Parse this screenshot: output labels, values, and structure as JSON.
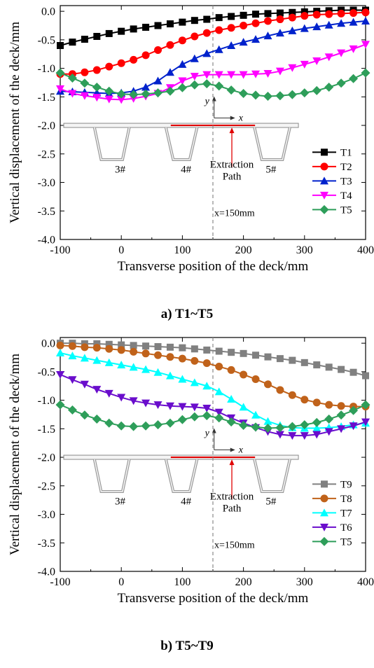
{
  "captions": {
    "a": "a)    T1~T5",
    "b": "b)    T5~T9"
  },
  "chart_data": [
    {
      "type": "line",
      "xlabel": "Transverse position of the deck/mm",
      "ylabel": "Vertical displacement of the deck/mm",
      "xlim": [
        -100,
        400
      ],
      "ylim": [
        -4.0,
        0.1
      ],
      "xticks": [
        -100,
        0,
        100,
        200,
        300,
        400
      ],
      "xtick_labels": [
        "-100",
        "0",
        "100",
        "200",
        "300",
        "400"
      ],
      "yticks": [
        0.0,
        -0.5,
        -1.0,
        -1.5,
        -2.0,
        -2.5,
        -3.0,
        -3.5,
        -4.0
      ],
      "ytick_labels": [
        "0.0",
        "-0.5",
        "-1.0",
        "-1.5",
        "-2.0",
        "-2.5",
        "-3.0",
        "-3.5",
        "-4.0"
      ],
      "x": [
        -100,
        -80,
        -60,
        -40,
        -20,
        0,
        20,
        40,
        60,
        80,
        100,
        120,
        140,
        160,
        180,
        200,
        220,
        240,
        260,
        280,
        300,
        320,
        340,
        360,
        380,
        400
      ],
      "annotations": {
        "vline_label": "x=150mm",
        "rib_labels": [
          "3#",
          "4#",
          "5#"
        ],
        "path_label": [
          "Extraction",
          "Path"
        ],
        "x_axis": "x",
        "y_axis": "y"
      },
      "series": [
        {
          "name": "T1",
          "color": "#000000",
          "marker": "square",
          "values": [
            -0.6,
            -0.54,
            -0.49,
            -0.44,
            -0.39,
            -0.35,
            -0.31,
            -0.28,
            -0.25,
            -0.22,
            -0.19,
            -0.16,
            -0.14,
            -0.11,
            -0.09,
            -0.07,
            -0.05,
            -0.04,
            -0.03,
            -0.02,
            -0.01,
            0.0,
            0.01,
            0.02,
            0.02,
            0.02
          ]
        },
        {
          "name": "T2",
          "color": "#ff0000",
          "marker": "circle",
          "values": [
            -1.1,
            -1.1,
            -1.07,
            -1.03,
            -0.97,
            -0.91,
            -0.85,
            -0.77,
            -0.68,
            -0.59,
            -0.51,
            -0.44,
            -0.38,
            -0.33,
            -0.29,
            -0.25,
            -0.21,
            -0.17,
            -0.14,
            -0.11,
            -0.08,
            -0.06,
            -0.05,
            -0.04,
            -0.03,
            -0.02
          ]
        },
        {
          "name": "T3",
          "color": "#0022cc",
          "marker": "triangle-up",
          "values": [
            -1.4,
            -1.41,
            -1.42,
            -1.43,
            -1.44,
            -1.43,
            -1.4,
            -1.33,
            -1.22,
            -1.07,
            -0.93,
            -0.83,
            -0.74,
            -0.67,
            -0.6,
            -0.54,
            -0.49,
            -0.43,
            -0.38,
            -0.34,
            -0.3,
            -0.27,
            -0.24,
            -0.21,
            -0.19,
            -0.17
          ]
        },
        {
          "name": "T4",
          "color": "#ff00ff",
          "marker": "triangle-down",
          "values": [
            -1.36,
            -1.44,
            -1.48,
            -1.51,
            -1.54,
            -1.55,
            -1.53,
            -1.49,
            -1.44,
            -1.34,
            -1.22,
            -1.14,
            -1.11,
            -1.11,
            -1.11,
            -1.11,
            -1.1,
            -1.09,
            -1.05,
            -0.99,
            -0.93,
            -0.87,
            -0.8,
            -0.73,
            -0.66,
            -0.58
          ]
        },
        {
          "name": "T5",
          "color": "#2e9e5a",
          "marker": "diamond",
          "values": [
            -1.08,
            -1.17,
            -1.26,
            -1.33,
            -1.4,
            -1.45,
            -1.46,
            -1.45,
            -1.43,
            -1.4,
            -1.34,
            -1.29,
            -1.27,
            -1.31,
            -1.38,
            -1.44,
            -1.47,
            -1.49,
            -1.48,
            -1.46,
            -1.43,
            -1.39,
            -1.33,
            -1.26,
            -1.18,
            -1.08
          ]
        }
      ]
    },
    {
      "type": "line",
      "xlabel": "Transverse position of the deck/mm",
      "ylabel": "Vertical displacement of the deck/mm",
      "xlim": [
        -100,
        400
      ],
      "ylim": [
        -4.0,
        0.1
      ],
      "xticks": [
        -100,
        0,
        100,
        200,
        300,
        400
      ],
      "xtick_labels": [
        "-100",
        "0",
        "100",
        "200",
        "300",
        "400"
      ],
      "yticks": [
        0.0,
        -0.5,
        -1.0,
        -1.5,
        -2.0,
        -2.5,
        -3.0,
        -3.5,
        -4.0
      ],
      "ytick_labels": [
        "0.0",
        "-0.5",
        "-1.0",
        "-1.5",
        "-2.0",
        "-2.5",
        "-3.0",
        "-3.5",
        "-4.0"
      ],
      "x": [
        -100,
        -80,
        -60,
        -40,
        -20,
        0,
        20,
        40,
        60,
        80,
        100,
        120,
        140,
        160,
        180,
        200,
        220,
        240,
        260,
        280,
        300,
        320,
        340,
        360,
        380,
        400
      ],
      "annotations": {
        "vline_label": "x=150mm",
        "rib_labels": [
          "3#",
          "4#",
          "5#"
        ],
        "path_label": [
          "Extraction",
          "Path"
        ],
        "x_axis": "x",
        "y_axis": "y"
      },
      "series": [
        {
          "name": "T9",
          "color": "#808080",
          "marker": "square",
          "values": [
            0.0,
            0.0,
            -0.01,
            -0.01,
            -0.02,
            -0.03,
            -0.04,
            -0.05,
            -0.06,
            -0.07,
            -0.08,
            -0.1,
            -0.12,
            -0.14,
            -0.16,
            -0.18,
            -0.21,
            -0.24,
            -0.27,
            -0.3,
            -0.34,
            -0.38,
            -0.42,
            -0.46,
            -0.51,
            -0.57
          ]
        },
        {
          "name": "T8",
          "color": "#c0621a",
          "marker": "circle",
          "values": [
            -0.04,
            -0.05,
            -0.07,
            -0.08,
            -0.1,
            -0.12,
            -0.15,
            -0.18,
            -0.21,
            -0.24,
            -0.27,
            -0.31,
            -0.35,
            -0.41,
            -0.47,
            -0.55,
            -0.63,
            -0.72,
            -0.82,
            -0.91,
            -0.99,
            -1.04,
            -1.08,
            -1.1,
            -1.11,
            -1.11
          ]
        },
        {
          "name": "T7",
          "color": "#00ffff",
          "marker": "triangle-up",
          "values": [
            -0.17,
            -0.22,
            -0.26,
            -0.3,
            -0.34,
            -0.38,
            -0.42,
            -0.46,
            -0.51,
            -0.57,
            -0.63,
            -0.69,
            -0.75,
            -0.85,
            -0.98,
            -1.12,
            -1.26,
            -1.37,
            -1.44,
            -1.48,
            -1.49,
            -1.49,
            -1.48,
            -1.46,
            -1.43,
            -1.4
          ]
        },
        {
          "name": "T6",
          "color": "#6a0dcc",
          "marker": "triangle-down",
          "values": [
            -0.55,
            -0.64,
            -0.72,
            -0.81,
            -0.88,
            -0.95,
            -1.01,
            -1.05,
            -1.08,
            -1.1,
            -1.11,
            -1.12,
            -1.14,
            -1.21,
            -1.31,
            -1.4,
            -1.48,
            -1.55,
            -1.6,
            -1.62,
            -1.62,
            -1.6,
            -1.55,
            -1.5,
            -1.45,
            -1.38
          ]
        },
        {
          "name": "T5",
          "color": "#2e9e5a",
          "marker": "diamond",
          "values": [
            -1.08,
            -1.17,
            -1.26,
            -1.33,
            -1.4,
            -1.45,
            -1.46,
            -1.45,
            -1.43,
            -1.4,
            -1.34,
            -1.29,
            -1.27,
            -1.31,
            -1.38,
            -1.44,
            -1.47,
            -1.49,
            -1.48,
            -1.46,
            -1.43,
            -1.39,
            -1.33,
            -1.26,
            -1.18,
            -1.08
          ]
        }
      ]
    }
  ]
}
